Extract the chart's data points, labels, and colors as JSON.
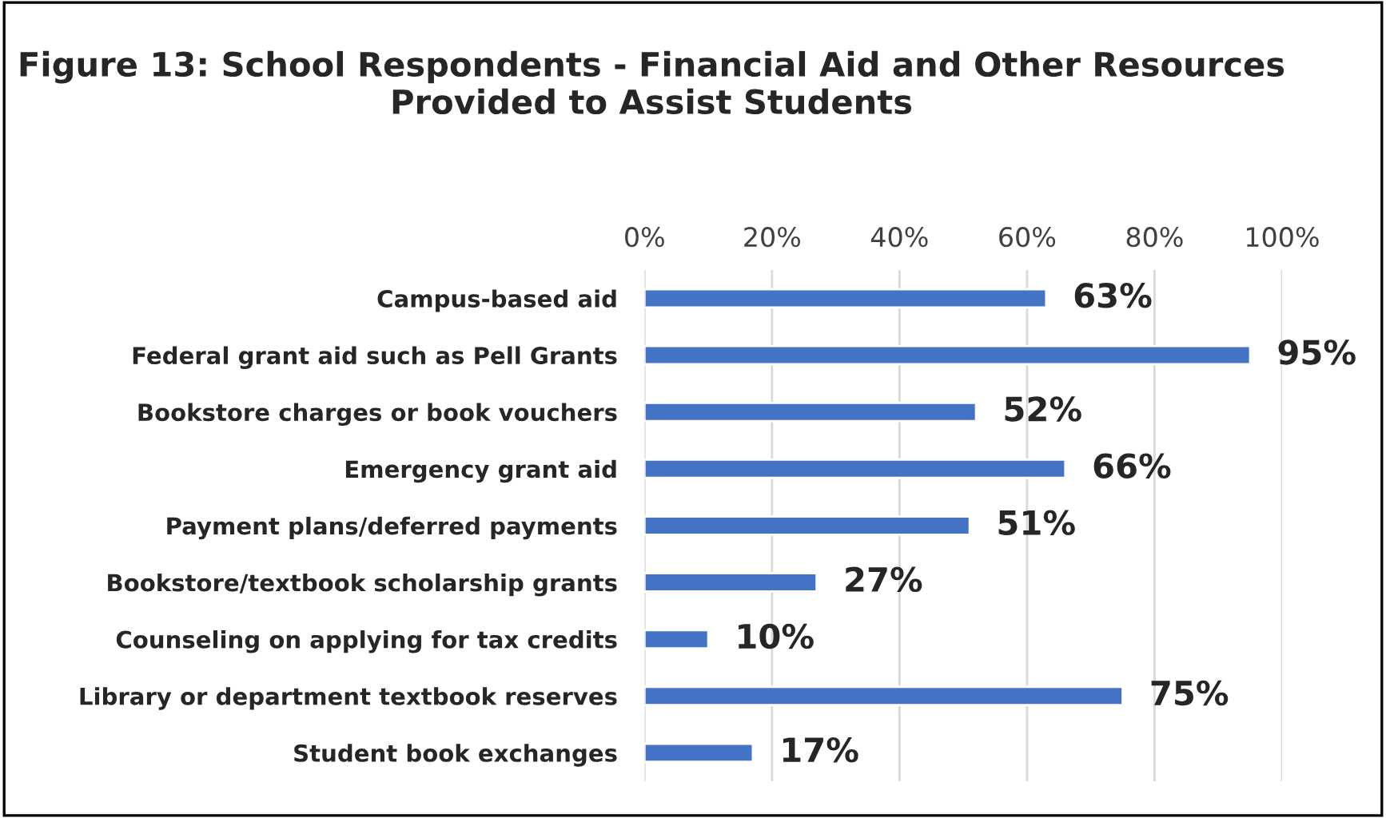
{
  "chart_data": {
    "type": "bar",
    "orientation": "horizontal",
    "title": "Figure 13: School Respondents - Financial Aid and Other Resources Provided to Assist Students",
    "categories": [
      "Campus-based aid",
      "Federal grant aid such as Pell Grants",
      "Bookstore charges or book vouchers",
      "Emergency grant aid",
      "Payment plans/deferred payments",
      "Bookstore/textbook scholarship grants",
      "Counseling on applying for tax credits",
      "Library or department textbook reserves",
      "Student book exchanges"
    ],
    "values": [
      63,
      95,
      52,
      66,
      51,
      27,
      10,
      75,
      17
    ],
    "value_labels": [
      "63%",
      "95%",
      "52%",
      "66%",
      "51%",
      "27%",
      "10%",
      "75%",
      "17%"
    ],
    "color": "#4472c4",
    "xlim": [
      0,
      100
    ],
    "xticks": [
      {
        "value": 0,
        "label": "0%"
      },
      {
        "value": 20,
        "label": "20%"
      },
      {
        "value": 40,
        "label": "40%"
      },
      {
        "value": 60,
        "label": "60%"
      },
      {
        "value": 80,
        "label": "80%"
      },
      {
        "value": 100,
        "label": "100%"
      }
    ],
    "grid": "x",
    "legend": false
  }
}
